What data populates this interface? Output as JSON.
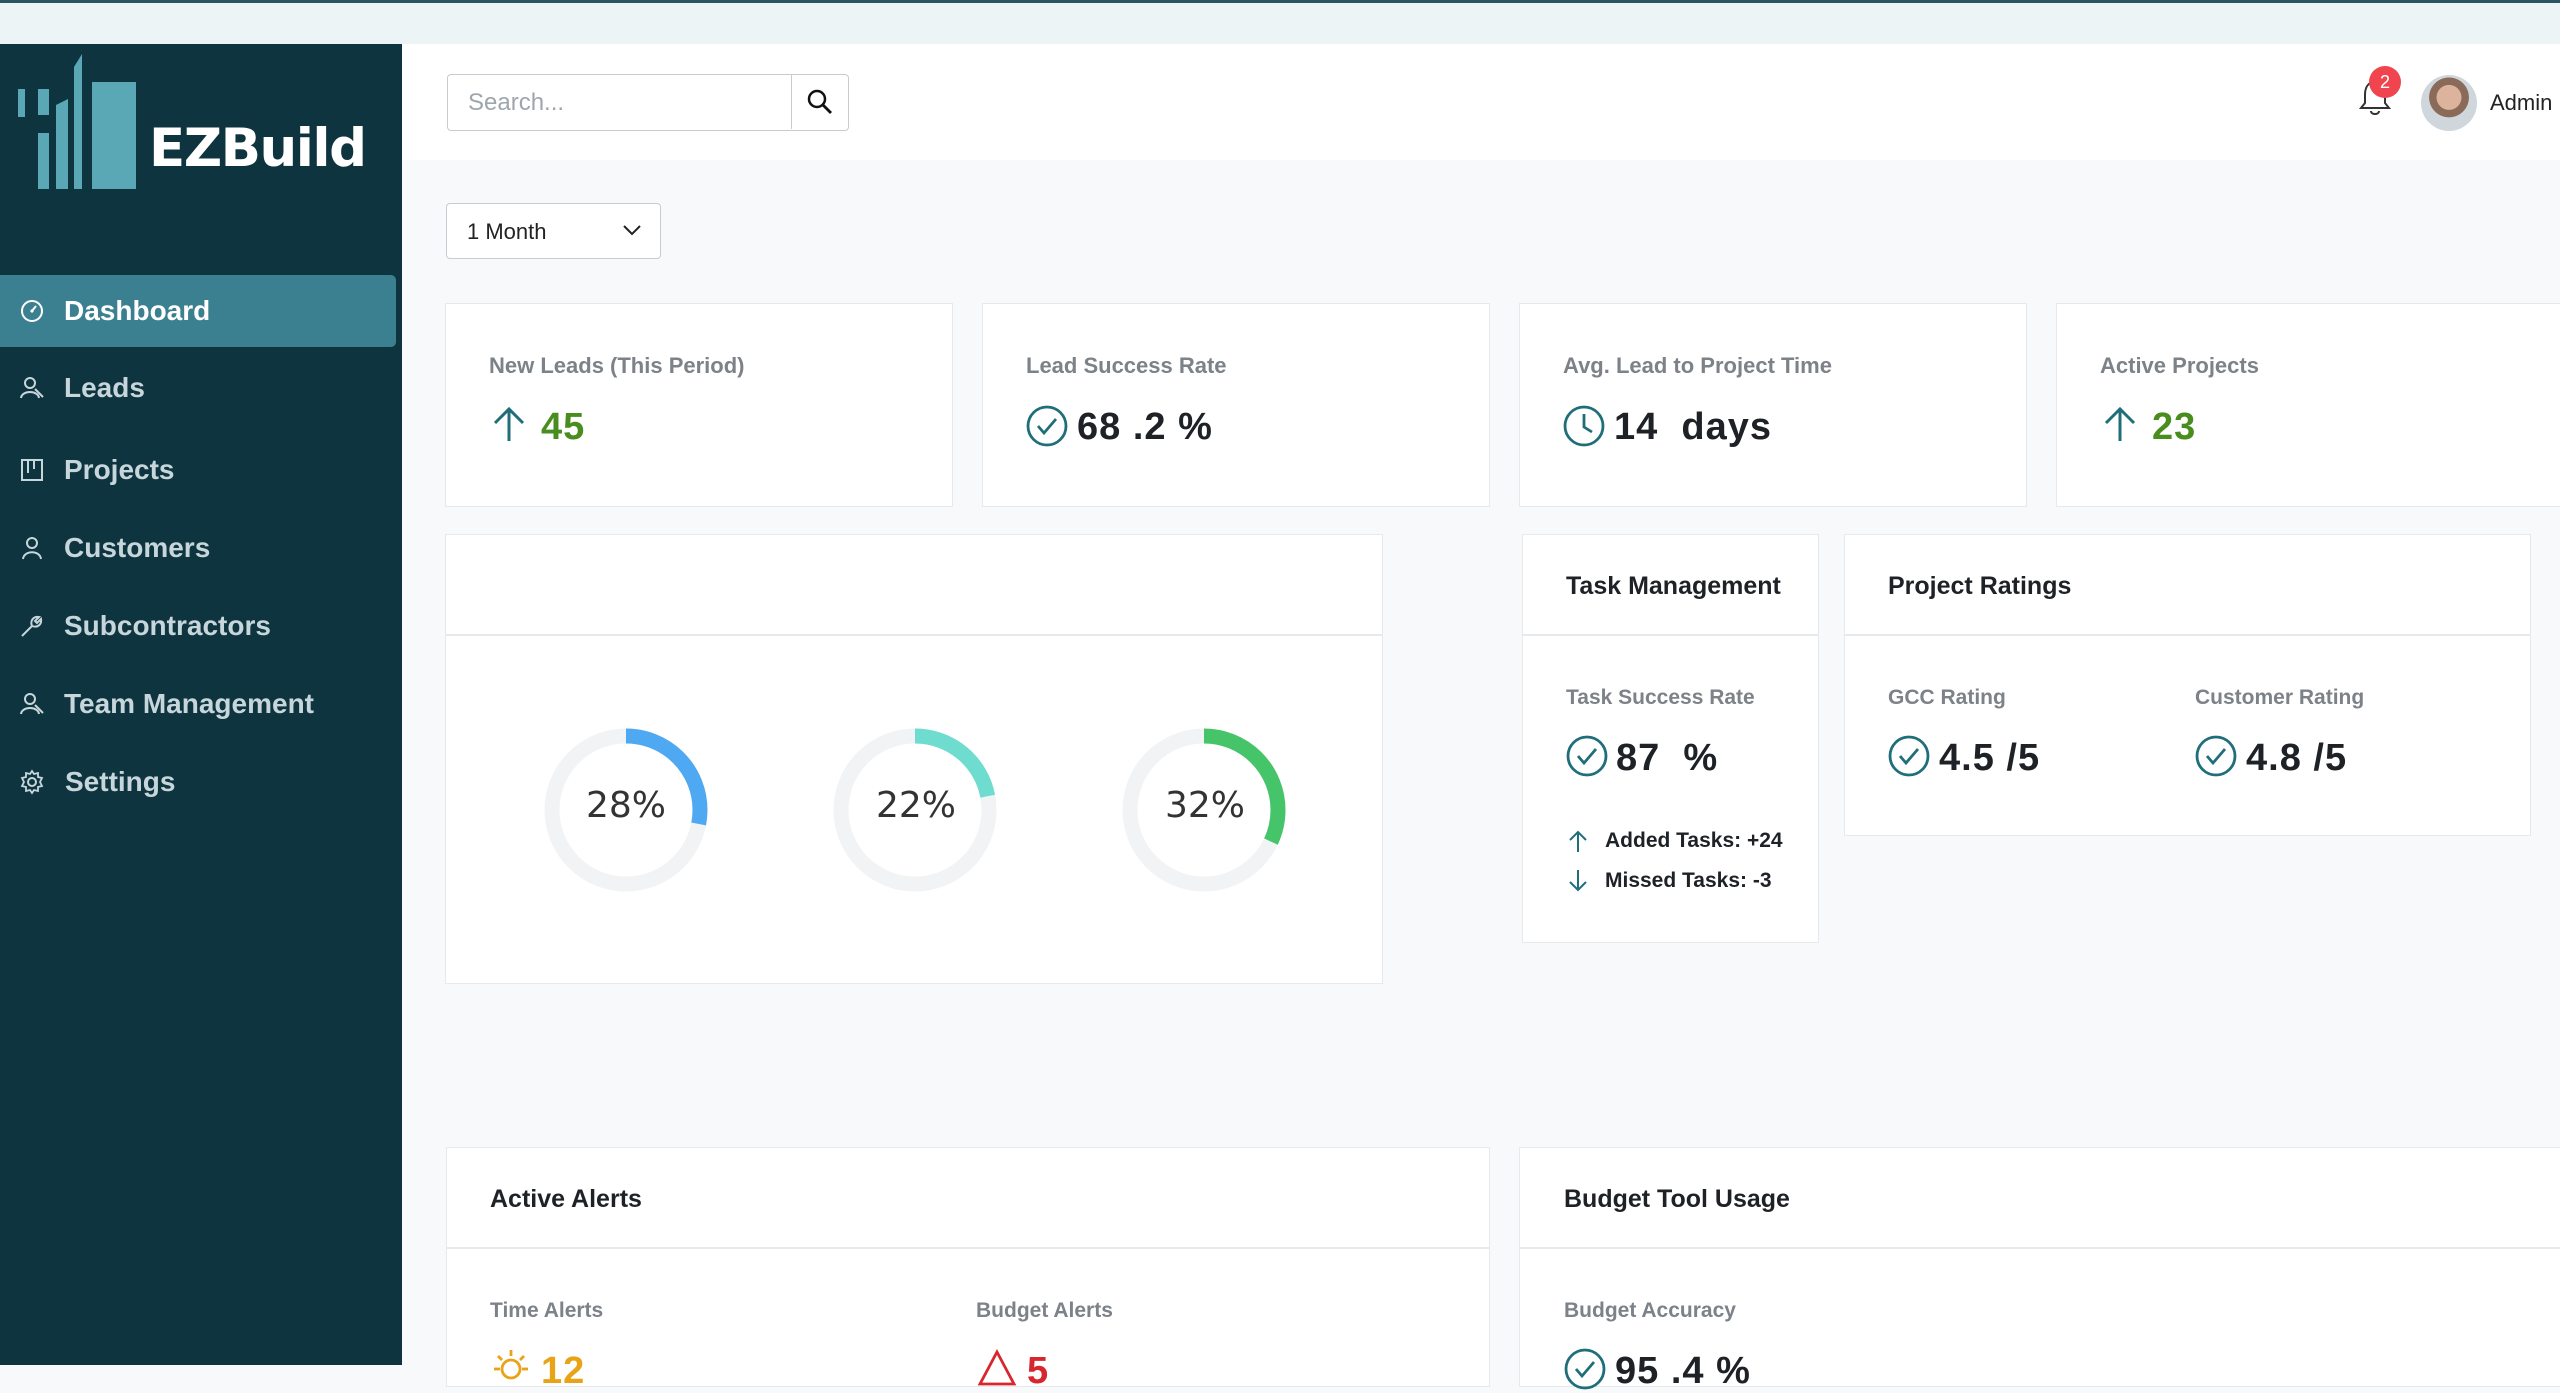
{
  "app": {
    "brand": "EZBuild"
  },
  "sidebar": {
    "items": [
      {
        "label": "Dashboard",
        "icon": "dashboard-icon",
        "active": true
      },
      {
        "label": "Leads",
        "icon": "leads-icon"
      },
      {
        "label": "Projects",
        "icon": "projects-icon"
      },
      {
        "label": "Customers",
        "icon": "customers-icon"
      },
      {
        "label": "Subcontractors",
        "icon": "wrench-icon"
      },
      {
        "label": "Team Management",
        "icon": "team-icon"
      },
      {
        "label": "Settings",
        "icon": "gear-icon"
      }
    ]
  },
  "header": {
    "search_placeholder": "Search...",
    "notification_count": "2",
    "user_name": "Admin"
  },
  "filter": {
    "period": "1 Month"
  },
  "kpis": [
    {
      "label": "New Leads (This Period)",
      "value": "45",
      "icon": "arrow-up-icon"
    },
    {
      "label": "Lead Success Rate",
      "value": "68 .2 %",
      "icon": "check-circle-icon"
    },
    {
      "label": "Avg. Lead to Project Time",
      "value": "14  days",
      "icon": "clock-icon"
    },
    {
      "label": "Active Projects",
      "value": "23",
      "icon": "arrow-up-icon"
    }
  ],
  "donuts": [
    {
      "label": "28%",
      "value": 28,
      "color": "#4fa9f2"
    },
    {
      "label": "22%",
      "value": 22,
      "color": "#6fdcd0"
    },
    {
      "label": "32%",
      "value": 32,
      "color": "#45c46a"
    }
  ],
  "task_management": {
    "title": "Task Management",
    "success_label": "Task Success Rate",
    "success_value": "87  %",
    "added": "Added Tasks: +24",
    "missed": "Missed Tasks: -3"
  },
  "project_ratings": {
    "title": "Project Ratings",
    "gcc_label": "GCC Rating",
    "gcc_value": "4.5 /5",
    "customer_label": "Customer Rating",
    "customer_value": "4.8 /5"
  },
  "alerts": {
    "title": "Active Alerts",
    "time_label": "Time Alerts",
    "time_value": "12",
    "budget_label": "Budget Alerts",
    "budget_value": "5"
  },
  "budget_tool": {
    "title": "Budget Tool Usage",
    "accuracy_label": "Budget Accuracy",
    "accuracy_value": "95 .4 %"
  },
  "colors": {
    "sidebar_bg": "#0e3440",
    "active_item": "#3b8090",
    "accent_teal": "#1f6e7a",
    "positive_green": "#4a8d1f",
    "badge_red": "#f0454f"
  }
}
